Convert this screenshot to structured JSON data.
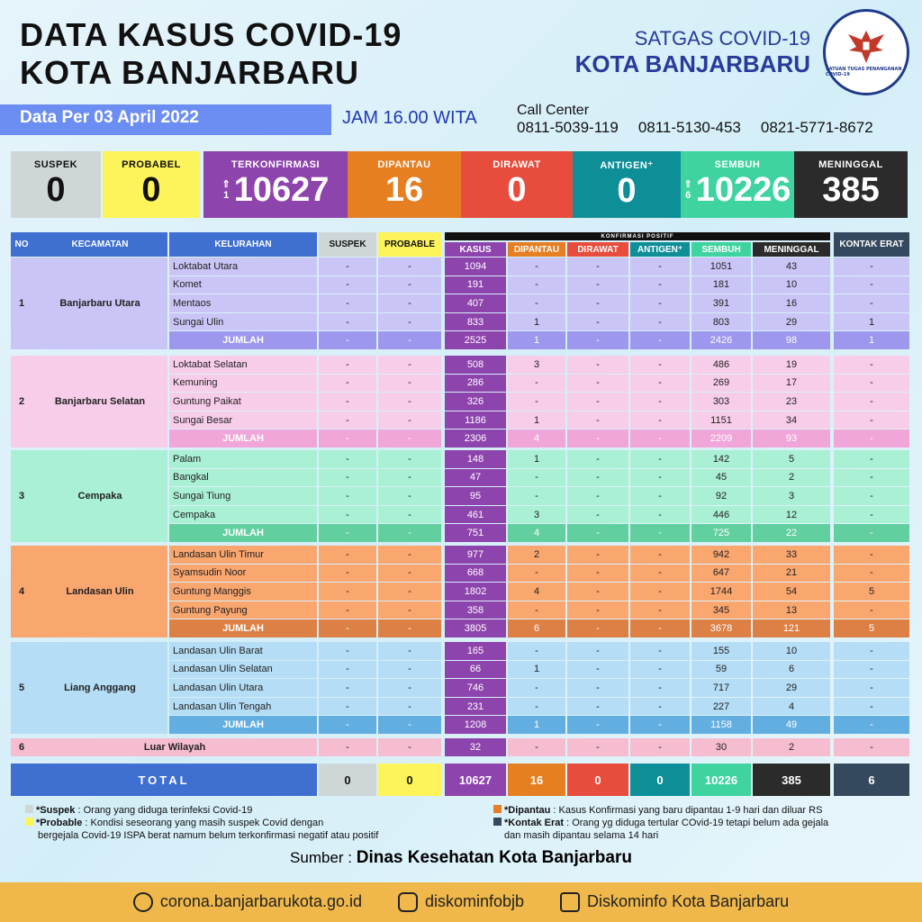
{
  "header": {
    "title_line1": "DATA KASUS COVID-19",
    "title_line2": "KOTA BANJARBARU",
    "org_line1": "SATGAS COVID-19",
    "org_line2": "KOTA BANJARBARU",
    "emblem_text": "SATUAN TUGAS PENANGANAN COVID-19"
  },
  "date_label": "Data Per 03 April 2022",
  "time_label": "JAM 16.00 WITA",
  "call_center": {
    "label": "Call Center",
    "numbers": [
      "0811-5039-119",
      "0811-5130-453",
      "0821-5771-8672"
    ]
  },
  "summary": [
    {
      "label": "SUSPEK",
      "value": "0",
      "bg": "#cfd6d8",
      "fg": "#111"
    },
    {
      "label": "PROBABEL",
      "value": "0",
      "bg": "#fdf35a",
      "fg": "#111"
    },
    {
      "label": "TERKONFIRMASI",
      "value": "10627",
      "bg": "#8e44ad",
      "fg": "#fff",
      "delta": "1"
    },
    {
      "label": "DIPANTAU",
      "value": "16",
      "bg": "#e67e22",
      "fg": "#fff"
    },
    {
      "label": "DIRAWAT",
      "value": "0",
      "bg": "#e74c3c",
      "fg": "#fff"
    },
    {
      "label": "ANTIGEN⁺",
      "value": "0",
      "bg": "#0e8f98",
      "fg": "#fff"
    },
    {
      "label": "SEMBUH",
      "value": "10226",
      "bg": "#3fd3a0",
      "fg": "#fff",
      "delta": "6"
    },
    {
      "label": "MENINGGAL",
      "value": "385",
      "bg": "#2b2b2b",
      "fg": "#fff"
    }
  ],
  "table": {
    "group_header": "KONFIRMASI POSITIF",
    "headers": [
      "NO",
      "KECAMATAN",
      "KELURAHAN",
      "SUSPEK",
      "PROBABLE",
      "KASUS",
      "DIPANTAU",
      "DIRAWAT",
      "ANTIGEN⁺",
      "SEMBUH",
      "MENINGGAL",
      "KONTAK ERAT"
    ],
    "header_colors": [
      "#3f6fd0",
      "#3f6fd0",
      "#3f6fd0",
      "#cfd6d8",
      "#fdf35a",
      "#8e44ad",
      "#e67e22",
      "#e74c3c",
      "#0e8f98",
      "#3fd3a0",
      "#2b2b2b",
      "#34495e"
    ],
    "groups": [
      {
        "no": "1",
        "kecamatan": "Banjarbaru Utara",
        "color": "#c9c5f6",
        "total_color": "#9d97ee",
        "rows": [
          [
            "Loktabat Utara",
            "-",
            "-",
            "1094",
            "-",
            "-",
            "-",
            "1051",
            "43",
            "-"
          ],
          [
            "Komet",
            "-",
            "-",
            "191",
            "-",
            "-",
            "-",
            "181",
            "10",
            "-"
          ],
          [
            "Mentaos",
            "-",
            "-",
            "407",
            "-",
            "-",
            "-",
            "391",
            "16",
            "-"
          ],
          [
            "Sungai Ulin",
            "-",
            "-",
            "833",
            "1",
            "-",
            "-",
            "803",
            "29",
            "1"
          ],
          [
            "JUMLAH",
            "-",
            "-",
            "2525",
            "1",
            "-",
            "-",
            "2426",
            "98",
            "1"
          ]
        ]
      },
      {
        "no": "2",
        "kecamatan": "Banjarbaru Selatan",
        "color": "#f8cdea",
        "total_color": "#f0a6d9",
        "rows": [
          [
            "Loktabat Selatan",
            "-",
            "-",
            "508",
            "3",
            "-",
            "-",
            "486",
            "19",
            "-"
          ],
          [
            "Kemuning",
            "-",
            "-",
            "286",
            "-",
            "-",
            "-",
            "269",
            "17",
            "-"
          ],
          [
            "Guntung Paikat",
            "-",
            "-",
            "326",
            "-",
            "-",
            "-",
            "303",
            "23",
            "-"
          ],
          [
            "Sungai Besar",
            "-",
            "-",
            "1186",
            "1",
            "-",
            "-",
            "1151",
            "34",
            "-"
          ],
          [
            "JUMLAH",
            "-",
            "-",
            "2306",
            "4",
            "-",
            "-",
            "2209",
            "93",
            "-"
          ]
        ]
      },
      {
        "no": "3",
        "kecamatan": "Cempaka",
        "color": "#aaf0d4",
        "total_color": "#62cf9f",
        "rows": [
          [
            "Palam",
            "-",
            "-",
            "148",
            "1",
            "-",
            "-",
            "142",
            "5",
            "-"
          ],
          [
            "Bangkal",
            "-",
            "-",
            "47",
            "-",
            "-",
            "-",
            "45",
            "2",
            "-"
          ],
          [
            "Sungai Tiung",
            "-",
            "-",
            "95",
            "-",
            "-",
            "-",
            "92",
            "3",
            "-"
          ],
          [
            "Cempaka",
            "-",
            "-",
            "461",
            "3",
            "-",
            "-",
            "446",
            "12",
            "-"
          ],
          [
            "JUMLAH",
            "-",
            "-",
            "751",
            "4",
            "-",
            "-",
            "725",
            "22",
            "-"
          ]
        ]
      },
      {
        "no": "4",
        "kecamatan": "Landasan Ulin",
        "color": "#f9a66f",
        "total_color": "#dd8046",
        "rows": [
          [
            "Landasan Ulin Timur",
            "-",
            "-",
            "977",
            "2",
            "-",
            "-",
            "942",
            "33",
            "-"
          ],
          [
            "Syamsudin Noor",
            "-",
            "-",
            "668",
            "-",
            "-",
            "-",
            "647",
            "21",
            "-"
          ],
          [
            "Guntung Manggis",
            "-",
            "-",
            "1802",
            "4",
            "-",
            "-",
            "1744",
            "54",
            "5"
          ],
          [
            "Guntung Payung",
            "-",
            "-",
            "358",
            "-",
            "-",
            "-",
            "345",
            "13",
            "-"
          ],
          [
            "JUMLAH",
            "-",
            "-",
            "3805",
            "6",
            "-",
            "-",
            "3678",
            "121",
            "5"
          ]
        ]
      },
      {
        "no": "5",
        "kecamatan": "Liang Anggang",
        "color": "#b5ddf6",
        "total_color": "#63aee0",
        "rows": [
          [
            "Landasan Ulin Barat",
            "-",
            "-",
            "165",
            "-",
            "-",
            "-",
            "155",
            "10",
            "-"
          ],
          [
            "Landasan Ulin Selatan",
            "-",
            "-",
            "66",
            "1",
            "-",
            "-",
            "59",
            "6",
            "-"
          ],
          [
            "Landasan Ulin Utara",
            "-",
            "-",
            "746",
            "-",
            "-",
            "-",
            "717",
            "29",
            "-"
          ],
          [
            "Landasan Ulin Tengah",
            "-",
            "-",
            "231",
            "-",
            "-",
            "-",
            "227",
            "4",
            "-"
          ],
          [
            "JUMLAH",
            "-",
            "-",
            "1208",
            "1",
            "-",
            "-",
            "1158",
            "49",
            "-"
          ]
        ]
      }
    ],
    "luar": {
      "no": "6",
      "kecamatan": "Luar Wilayah",
      "color": "#f6bccf",
      "values": [
        "-",
        "-",
        "32",
        "-",
        "-",
        "-",
        "30",
        "2",
        "-"
      ]
    },
    "total": {
      "label": "TOTAL",
      "values": [
        "0",
        "0",
        "10627",
        "16",
        "0",
        "0",
        "10226",
        "385",
        "6"
      ]
    }
  },
  "legend": {
    "suspek_term": "*Suspek",
    "suspek_text": ": Orang yang diduga terinfeksi Covid-19",
    "probable_term": "*Probable",
    "probable_text": ": Kondisi seseorang yang masih suspek Covid dengan",
    "probable_text2": "bergejala Covid-19 ISPA berat namum belum terkonfirmasi negatif atau positif",
    "dipantau_term": "*Dipantau",
    "dipantau_text": ": Kasus Konfirmasi yang baru dipantau 1-9 hari dan diluar RS",
    "kontak_term": "*Kontak Erat",
    "kontak_text": ": Orang yg diduga tertular COvid-19 tetapi belum ada gejala",
    "kontak_text2": "dan masih dipantau selama 14 hari"
  },
  "source": {
    "label": "Sumber :",
    "value": "Dinas Kesehatan Kota Banjarbaru"
  },
  "footer": {
    "website": "corona.banjarbarukota.go.id",
    "instagram": "diskominfobjb",
    "facebook": "Diskominfo Kota Banjarbaru"
  }
}
